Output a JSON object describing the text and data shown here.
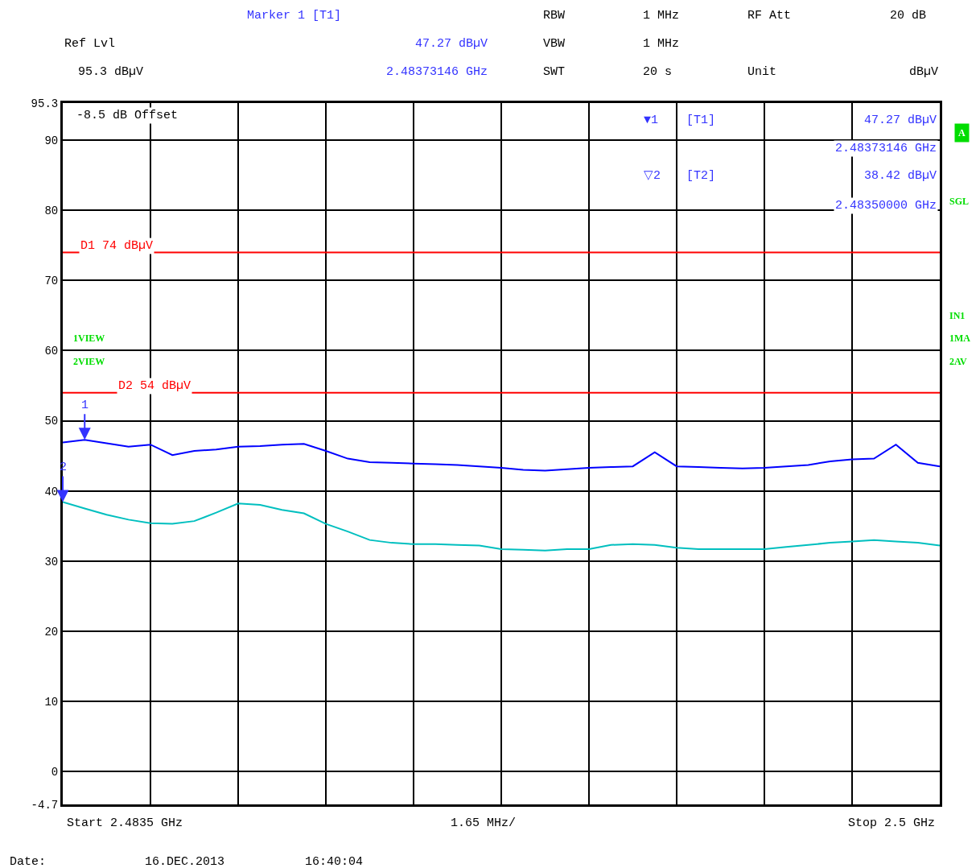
{
  "chart_data": {
    "type": "line",
    "categories": [
      null,
      null,
      null,
      null,
      null,
      null,
      null,
      null,
      null,
      null,
      null,
      null,
      null,
      null,
      null,
      null,
      null,
      null,
      null,
      null,
      null,
      null,
      null,
      null,
      null,
      null,
      null,
      null,
      null,
      null,
      null,
      null,
      null,
      null,
      null,
      null,
      null,
      null,
      null,
      null,
      null
    ],
    "ylim": [
      -4.7,
      95.3
    ],
    "yticks": [
      -4.7,
      0,
      10,
      20,
      30,
      40,
      50,
      60,
      70,
      80,
      90,
      95.3
    ],
    "grid": true,
    "series": [
      {
        "color": "#0000ff",
        "values": [
          46.9,
          47.27,
          46.8,
          46.3,
          46.6,
          45.1,
          45.7,
          45.9,
          46.3,
          46.4,
          46.6,
          46.7,
          45.7,
          44.6,
          44.1,
          44.0,
          43.9,
          43.8,
          43.7,
          43.5,
          43.3,
          43.0,
          42.9,
          43.1,
          43.3,
          43.4,
          43.5,
          45.5,
          43.5,
          43.4,
          43.3,
          43.2,
          43.3,
          43.5,
          43.7,
          44.2,
          44.5,
          44.6,
          46.6,
          44.0,
          43.5
        ]
      },
      {
        "color": "#00bfbf",
        "values": [
          38.42,
          37.5,
          36.6,
          35.9,
          35.4,
          35.3,
          35.7,
          36.9,
          38.2,
          38.0,
          37.3,
          36.8,
          35.3,
          34.2,
          33.0,
          32.6,
          32.4,
          32.4,
          32.3,
          32.2,
          31.7,
          31.6,
          31.5,
          31.7,
          31.7,
          32.3,
          32.4,
          32.3,
          31.9,
          31.7,
          31.7,
          31.7,
          31.7,
          32.0,
          32.3,
          32.6,
          32.8,
          33.0,
          32.8,
          32.6,
          32.2
        ]
      }
    ],
    "ref_lines": [
      {
        "axis": "y",
        "value": 74,
        "label": "D1 74 dBµV",
        "color": "#ff0000"
      },
      {
        "axis": "y",
        "value": 54,
        "label": "D2 54 dBµV",
        "color": "#ff0000"
      }
    ],
    "annotations": [
      "Marker 1 [T1]",
      "RBW",
      "1 MHz",
      "RF Att",
      "20 dB",
      "Ref Lvl",
      "47.27 dBµV",
      "VBW",
      "1 MHz",
      "95.3 dBµV",
      "2.48373146 GHz",
      "SWT",
      "20 s",
      "Unit",
      "dBµV",
      "-8.5 dB Offset",
      "▼1",
      "[T1]",
      "47.27 dBµV",
      "2.48373146 GHz",
      "▽2",
      "[T2]",
      "38.42 dBµV",
      "2.48350000 GHz",
      "1VIEW",
      "2VIEW",
      "A",
      "SGL",
      "IN1",
      "1MA",
      "2AV",
      "Start 2.4835 GHz",
      "1.65 MHz/",
      "Stop 2.5 GHz",
      "Date:",
      "16.DEC.2013",
      "16:40:04",
      {
        "text": "1",
        "y": 47.27
      },
      {
        "text": "2",
        "y": 38.42
      }
    ]
  }
}
